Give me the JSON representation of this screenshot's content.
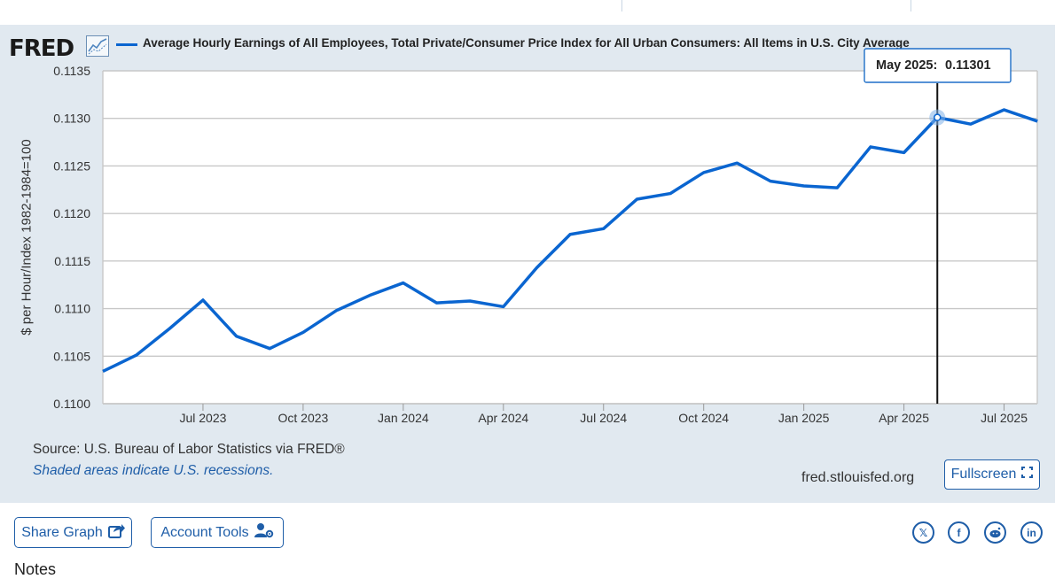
{
  "header": {
    "logo_text": "FRED",
    "logo_icon": "line-chart-icon",
    "series_title": "Average Hourly Earnings of All Employees, Total Private/Consumer Price Index for All Urban Consumers: All Items in U.S. City Average"
  },
  "chart_data": {
    "type": "line",
    "title": "Average Hourly Earnings of All Employees, Total Private/Consumer Price Index for All Urban Consumers: All Items in U.S. City Average",
    "xlabel": "",
    "ylabel": "$ per Hour/Index 1982-1984=100",
    "ylim": [
      0.11,
      0.1135
    ],
    "y_ticks": [
      "0.1100",
      "0.1105",
      "0.1110",
      "0.1115",
      "0.1120",
      "0.1125",
      "0.1130",
      "0.1135"
    ],
    "x_tick_labels": [
      "Jul 2023",
      "Oct 2023",
      "Jan 2024",
      "Apr 2024",
      "Jul 2024",
      "Oct 2024",
      "Jan 2025",
      "Apr 2025",
      "Jul 2025"
    ],
    "grid": true,
    "series": [
      {
        "name": "Average Hourly Earnings of All Employees, Total Private/Consumer Price Index for All Urban Consumers: All Items in U.S. City Average",
        "color": "#0a65d0",
        "x": [
          "2023-04",
          "2023-05",
          "2023-06",
          "2023-07",
          "2023-08",
          "2023-09",
          "2023-10",
          "2023-11",
          "2023-12",
          "2024-01",
          "2024-02",
          "2024-03",
          "2024-04",
          "2024-05",
          "2024-06",
          "2024-07",
          "2024-08",
          "2024-09",
          "2024-10",
          "2024-11",
          "2024-12",
          "2025-01",
          "2025-02",
          "2025-03",
          "2025-04",
          "2025-05",
          "2025-06",
          "2025-07",
          "2025-08"
        ],
        "values": [
          0.11034,
          0.11051,
          0.11079,
          0.11109,
          0.11071,
          0.11058,
          0.11075,
          0.11098,
          0.11114,
          0.11127,
          0.11106,
          0.11108,
          0.11102,
          0.11143,
          0.11178,
          0.11184,
          0.11215,
          0.11221,
          0.11243,
          0.11253,
          0.11234,
          0.11229,
          0.11227,
          0.1127,
          0.11264,
          0.11301,
          0.11294,
          0.11309,
          0.11297
        ]
      }
    ],
    "highlight": {
      "label": "May 2025:",
      "value": "0.11301"
    }
  },
  "footer": {
    "source": "Source: U.S. Bureau of Labor Statistics via FRED®",
    "recession_note": "Shaded areas indicate U.S. recessions.",
    "url": "fred.stlouisfed.org",
    "fullscreen_label": "Fullscreen"
  },
  "actions": {
    "share_label": "Share Graph",
    "account_label": "Account Tools"
  },
  "social": [
    "x-icon",
    "facebook-icon",
    "reddit-icon",
    "linkedin-icon"
  ],
  "notes_heading": "Notes"
}
